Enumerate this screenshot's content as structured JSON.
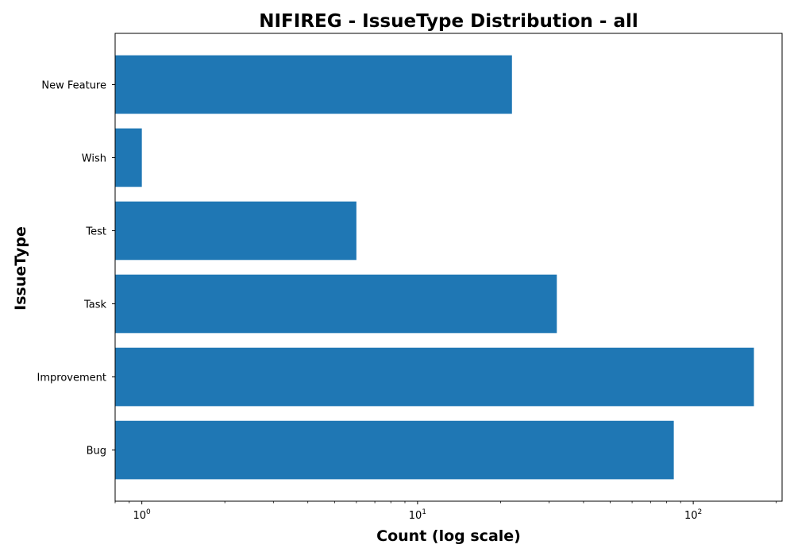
{
  "chart_data": {
    "type": "bar",
    "orientation": "horizontal",
    "title": "NIFIREG - IssueType Distribution - all",
    "xlabel": "Count (log scale)",
    "ylabel": "IssueType",
    "x_scale": "log",
    "xlim": [
      0.8,
      210
    ],
    "x_ticks": [
      {
        "value": 1,
        "base": "10",
        "exp": "0"
      },
      {
        "value": 10,
        "base": "10",
        "exp": "1"
      },
      {
        "value": 100,
        "base": "10",
        "exp": "2"
      }
    ],
    "categories": [
      "New Feature",
      "Wish",
      "Test",
      "Task",
      "Improvement",
      "Bug"
    ],
    "values": [
      22,
      1,
      6,
      32,
      166,
      85
    ],
    "bar_color": "#1f77b4",
    "grid": false,
    "legend": "none"
  }
}
